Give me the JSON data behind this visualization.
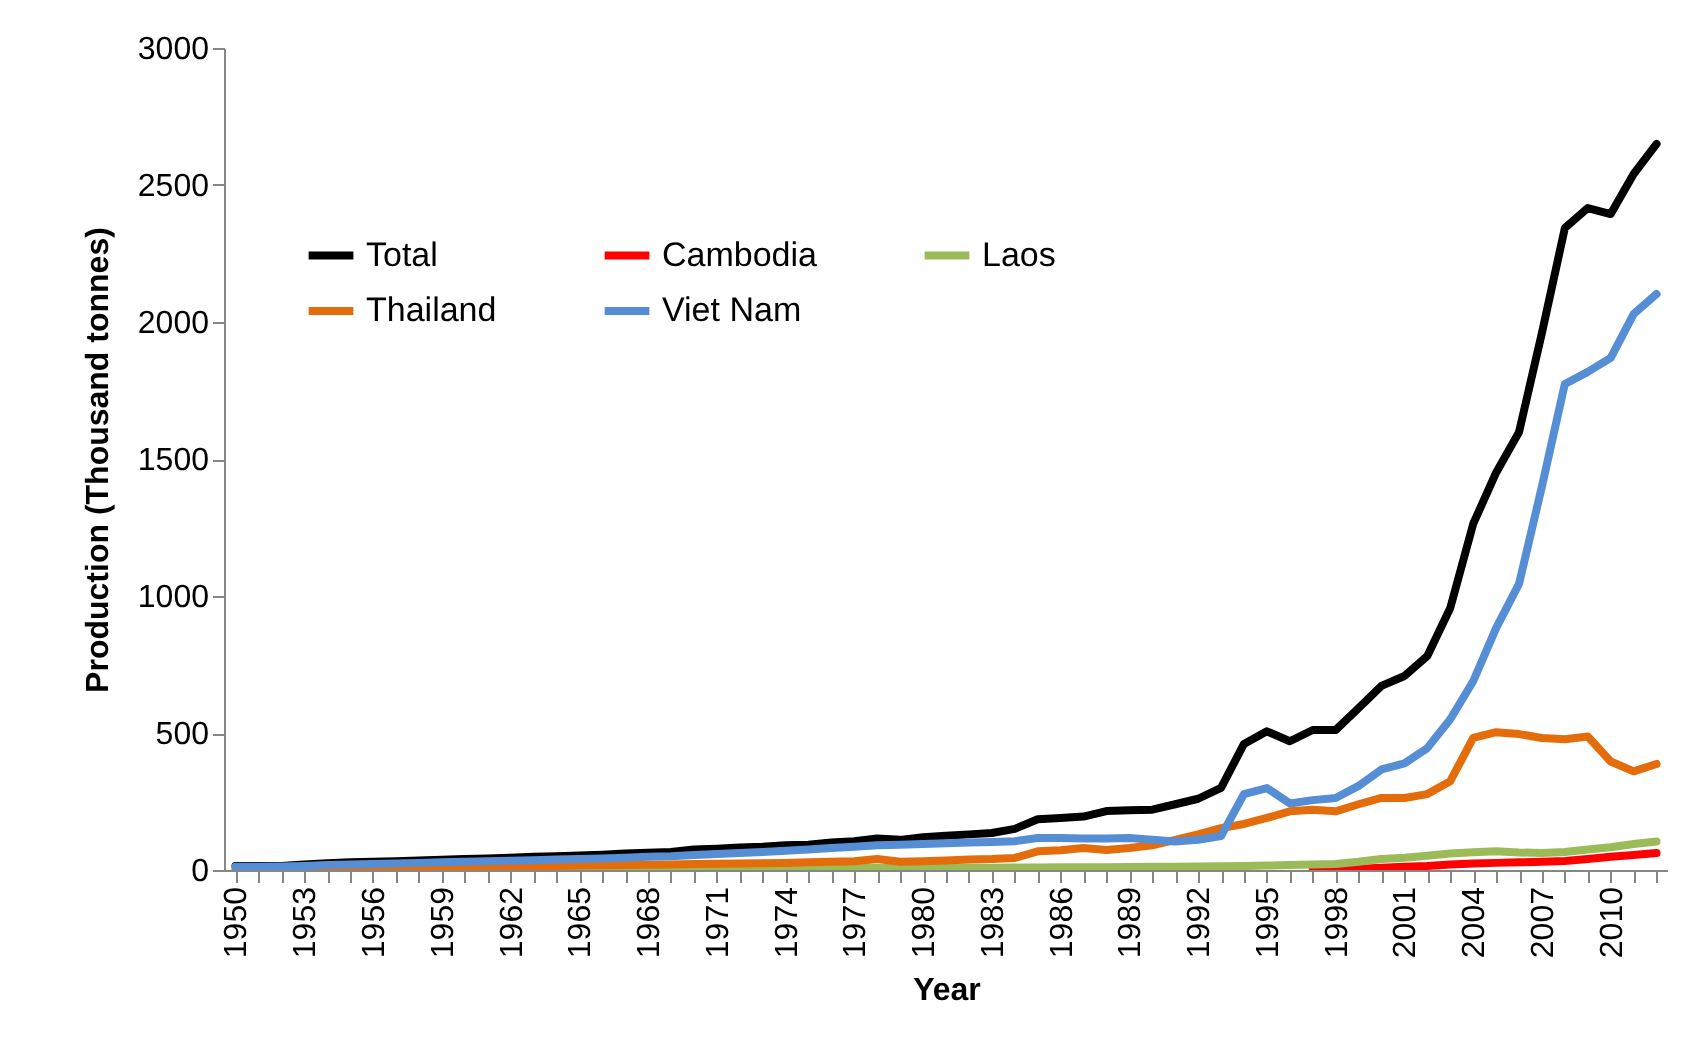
{
  "chart_data": {
    "type": "line",
    "xlabel": "Year",
    "ylabel": "Production (Thousand tonnes)",
    "categories": [
      "1950",
      null,
      null,
      "1953",
      null,
      null,
      "1956",
      null,
      null,
      "1959",
      null,
      null,
      "1962",
      null,
      null,
      "1965",
      null,
      null,
      "1968",
      null,
      null,
      "1971",
      null,
      null,
      "1974",
      null,
      null,
      "1977",
      null,
      null,
      "1980",
      null,
      null,
      "1983",
      null,
      null,
      "1986",
      null,
      null,
      "1989",
      null,
      null,
      "1992",
      null,
      null,
      "1995",
      null,
      null,
      "1998",
      null,
      null,
      "2001",
      null,
      null,
      "2004",
      null,
      null,
      "2007",
      null,
      null,
      "2010",
      null,
      null
    ],
    "series": [
      {
        "name": "Total",
        "color": "#000000",
        "values": [
          15,
          15,
          15,
          20,
          25,
          28,
          30,
          32,
          35,
          37,
          40,
          42,
          45,
          48,
          50,
          53,
          56,
          60,
          63,
          66,
          75,
          78,
          82,
          85,
          90,
          92,
          100,
          105,
          115,
          110,
          120,
          125,
          130,
          135,
          150,
          185,
          190,
          195,
          215,
          218,
          220,
          240,
          260,
          300,
          460,
          506,
          470,
          511,
          511,
          591,
          672,
          708,
          781,
          956,
          1263,
          1450,
          1598,
          1960,
          2343,
          2416,
          2394,
          2540,
          2650
        ]
      },
      {
        "name": "Cambodia",
        "color": "#ff0000",
        "values": [
          null,
          null,
          null,
          null,
          null,
          null,
          null,
          null,
          null,
          null,
          null,
          null,
          null,
          null,
          null,
          null,
          null,
          null,
          null,
          null,
          null,
          null,
          null,
          null,
          null,
          null,
          null,
          null,
          null,
          null,
          null,
          null,
          null,
          null,
          null,
          null,
          null,
          null,
          null,
          null,
          null,
          null,
          null,
          null,
          null,
          null,
          null,
          1,
          3,
          5,
          8,
          12,
          15,
          20,
          24,
          26,
          28,
          30,
          33,
          40,
          48,
          55,
          62
        ]
      },
      {
        "name": "Laos",
        "color": "#9bbb59",
        "values": [
          null,
          null,
          null,
          null,
          null,
          null,
          null,
          null,
          null,
          null,
          null,
          null,
          null,
          null,
          2,
          2,
          2,
          3,
          3,
          3,
          3,
          4,
          4,
          4,
          5,
          5,
          5,
          6,
          8,
          6,
          7,
          7,
          8,
          8,
          9,
          9,
          10,
          10,
          10,
          11,
          12,
          12,
          13,
          14,
          15,
          16,
          18,
          20,
          22,
          30,
          40,
          45,
          52,
          60,
          65,
          68,
          64,
          62,
          66,
          75,
          83,
          95,
          104
        ]
      },
      {
        "name": "Thailand",
        "color": "#e46c0a",
        "values": [
          2,
          3,
          3,
          4,
          5,
          6,
          7,
          8,
          9,
          10,
          11,
          12,
          13,
          14,
          15,
          16,
          17,
          18,
          19,
          20,
          22,
          23,
          24,
          25,
          26,
          28,
          30,
          32,
          40,
          30,
          32,
          35,
          38,
          40,
          44,
          68,
          72,
          80,
          73,
          80,
          90,
          110,
          130,
          153,
          168,
          190,
          214,
          220,
          214,
          240,
          263,
          263,
          277,
          324,
          482,
          503,
          496,
          482,
          477,
          487,
          396,
          360,
          387
        ]
      },
      {
        "name": "Viet Nam",
        "color": "#558ed5",
        "values": [
          12,
          12,
          13,
          15,
          18,
          20,
          22,
          24,
          26,
          28,
          30,
          32,
          34,
          36,
          38,
          40,
          42,
          45,
          48,
          50,
          55,
          58,
          62,
          66,
          70,
          75,
          80,
          85,
          90,
          92,
          95,
          98,
          100,
          102,
          105,
          117,
          117,
          115,
          115,
          117,
          110,
          104,
          110,
          124,
          277,
          299,
          243,
          255,
          263,
          307,
          367,
          389,
          445,
          550,
          689,
          883,
          1044,
          1400,
          1774,
          1818,
          1869,
          2029,
          2102
        ]
      }
    ],
    "ylim": [
      0,
      3000
    ],
    "yticks": [
      0,
      500,
      1000,
      1500,
      2000,
      2500,
      3000
    ],
    "legend": "top left"
  }
}
